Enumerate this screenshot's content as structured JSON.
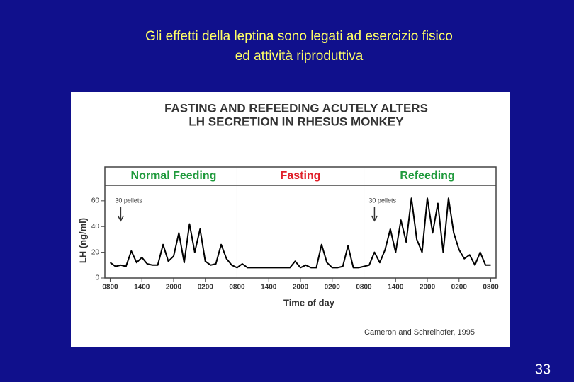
{
  "slide": {
    "title_lines": [
      "Gli effetti della leptina sono legati ad esercizio fisico",
      "ed attività riproduttiva"
    ],
    "citation": "Cameron and Schreihofer, 1995",
    "page_number": "33"
  },
  "chart_data": {
    "type": "line",
    "title_lines": [
      "FASTING AND REFEEDING ACUTELY ALTERS",
      "LH SECRETION IN RHESUS MONKEY"
    ],
    "x_label": "Time of day",
    "y_label": "LH (ng/ml)",
    "phases": [
      {
        "name": "Normal Feeding",
        "color": "#1f9a3c",
        "start": 0,
        "end": 24
      },
      {
        "name": "Fasting",
        "color": "#e0202a",
        "start": 24,
        "end": 48
      },
      {
        "name": "Refeeding",
        "color": "#1f9a3c",
        "start": 48,
        "end": 72
      }
    ],
    "annotations": [
      {
        "text": "30 pellets",
        "x": 2
      },
      {
        "text": "30 pellets",
        "x": 50
      }
    ],
    "x": [
      0,
      1,
      2,
      3,
      4,
      5,
      6,
      7,
      8,
      9,
      10,
      11,
      12,
      13,
      14,
      15,
      16,
      17,
      18,
      19,
      20,
      21,
      22,
      23,
      24,
      25,
      26,
      27,
      28,
      29,
      30,
      31,
      32,
      33,
      34,
      35,
      36,
      37,
      38,
      39,
      40,
      41,
      42,
      43,
      44,
      45,
      46,
      47,
      48,
      49,
      50,
      51,
      52,
      53,
      54,
      55,
      56,
      57,
      58,
      59,
      60,
      61,
      62,
      63,
      64,
      65,
      66,
      67,
      68,
      69,
      70,
      71,
      72
    ],
    "series": [
      {
        "color": "#000000",
        "values": [
          12,
          9,
          10,
          9,
          21,
          12,
          16,
          11,
          10,
          10,
          26,
          13,
          17,
          35,
          12,
          42,
          20,
          38,
          13,
          10,
          11,
          26,
          15,
          10,
          8,
          11,
          8,
          8,
          8,
          8,
          8,
          8,
          8,
          8,
          8,
          13,
          8,
          10,
          8,
          8,
          26,
          12,
          8,
          8,
          9,
          25,
          8,
          8,
          9,
          10,
          20,
          12,
          22,
          38,
          20,
          45,
          28,
          62,
          30,
          20,
          62,
          35,
          58,
          20,
          62,
          35,
          22,
          15,
          18,
          10,
          20,
          10,
          10
        ]
      }
    ],
    "xlim": [
      -1,
      73
    ],
    "ylim": [
      0,
      72
    ],
    "xticks": [
      {
        "value": 0,
        "label": "0800"
      },
      {
        "value": 6,
        "label": "1400"
      },
      {
        "value": 12,
        "label": "2000"
      },
      {
        "value": 18,
        "label": "0200"
      },
      {
        "value": 24,
        "label": "0800"
      },
      {
        "value": 30,
        "label": "1400"
      },
      {
        "value": 36,
        "label": "2000"
      },
      {
        "value": 42,
        "label": "0200"
      },
      {
        "value": 48,
        "label": "0800"
      },
      {
        "value": 54,
        "label": "1400"
      },
      {
        "value": 60,
        "label": "2000"
      },
      {
        "value": 66,
        "label": "0200"
      },
      {
        "value": 72,
        "label": "0800"
      }
    ],
    "yticks": [
      0,
      20,
      40,
      60
    ]
  }
}
